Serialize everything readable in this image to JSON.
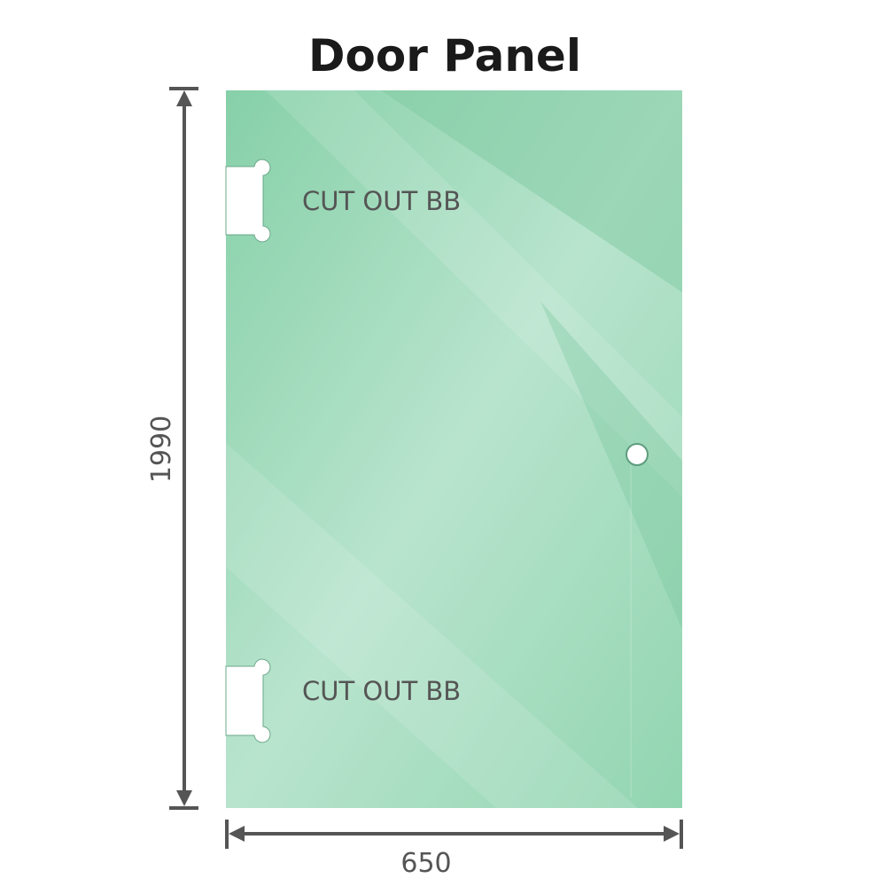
{
  "title": "Door Panel",
  "cutouts": [
    {
      "label": "CUT OUT BB"
    },
    {
      "label": "CUT OUT BB"
    }
  ],
  "dimensions": {
    "height": "1990",
    "width": "650"
  },
  "colors": {
    "glass": "#8dd3ae",
    "glass_light": "#bfe6d2",
    "dimension_line": "#555555"
  }
}
